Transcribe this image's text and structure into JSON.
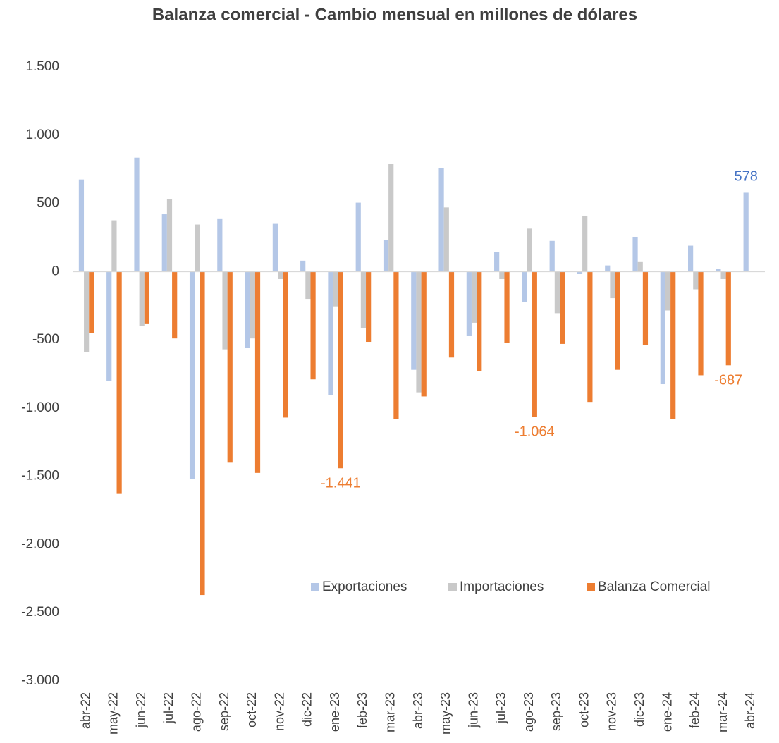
{
  "chart_data": {
    "type": "bar",
    "title": "Balanza comercial - Cambio mensual en millones de dólares",
    "categories": [
      "abr-22",
      "may-22",
      "jun-22",
      "jul-22",
      "ago-22",
      "sep-22",
      "oct-22",
      "nov-22",
      "dic-22",
      "ene-23",
      "feb-23",
      "mar-23",
      "abr-23",
      "may-23",
      "jun-23",
      "jul-23",
      "ago-23",
      "sep-23",
      "oct-23",
      "nov-23",
      "dic-23",
      "ene-24",
      "feb-24",
      "mar-24",
      "abr-24"
    ],
    "series": [
      {
        "name": "Exportaciones",
        "color": "#b4c7e7",
        "label_color": "#4472c4",
        "values": [
          675,
          -800,
          835,
          420,
          -1520,
          390,
          -560,
          350,
          80,
          -905,
          505,
          230,
          -720,
          760,
          -470,
          145,
          -225,
          225,
          -15,
          45,
          255,
          -825,
          190,
          20,
          578
        ],
        "value_labels": [
          null,
          null,
          null,
          null,
          null,
          null,
          null,
          null,
          null,
          null,
          null,
          null,
          null,
          null,
          null,
          null,
          null,
          null,
          null,
          null,
          null,
          null,
          null,
          null,
          "578"
        ]
      },
      {
        "name": "Importaciones",
        "color": "#c9c9c9",
        "values": [
          -588,
          376,
          -400,
          530,
          345,
          -570,
          -490,
          -55,
          -200,
          -255,
          -415,
          790,
          -885,
          470,
          -375,
          -55,
          315,
          -305,
          410,
          -195,
          75,
          -285,
          -130,
          -55,
          null
        ]
      },
      {
        "name": "Balanza Comercial",
        "color": "#ed7d31",
        "label_color": "#ed7d31",
        "values": [
          -448,
          -1629,
          -380,
          -490,
          -2370,
          -1400,
          -1475,
          -1070,
          -790,
          -1441,
          -515,
          -1080,
          -915,
          -630,
          -730,
          -520,
          -1064,
          -530,
          -955,
          -720,
          -540,
          -1080,
          -760,
          -687,
          null
        ],
        "value_labels": [
          null,
          null,
          null,
          null,
          null,
          null,
          null,
          null,
          null,
          "-1.441",
          null,
          null,
          null,
          null,
          null,
          null,
          "-1.064",
          null,
          null,
          null,
          null,
          null,
          null,
          "-687",
          null
        ]
      }
    ],
    "ylim": [
      -3000,
      1500
    ],
    "yticks": [
      {
        "value": 1500,
        "label": "1.500"
      },
      {
        "value": 1000,
        "label": "1.000"
      },
      500,
      0,
      -500,
      {
        "value": -1000,
        "label": "-1.000"
      },
      {
        "value": -1500,
        "label": "-1.500"
      },
      {
        "value": -2000,
        "label": "-2.000"
      },
      {
        "value": -2500,
        "label": "-2.500"
      },
      {
        "value": -3000,
        "label": "-3.000"
      }
    ],
    "grid": false,
    "legend": "lower right"
  }
}
